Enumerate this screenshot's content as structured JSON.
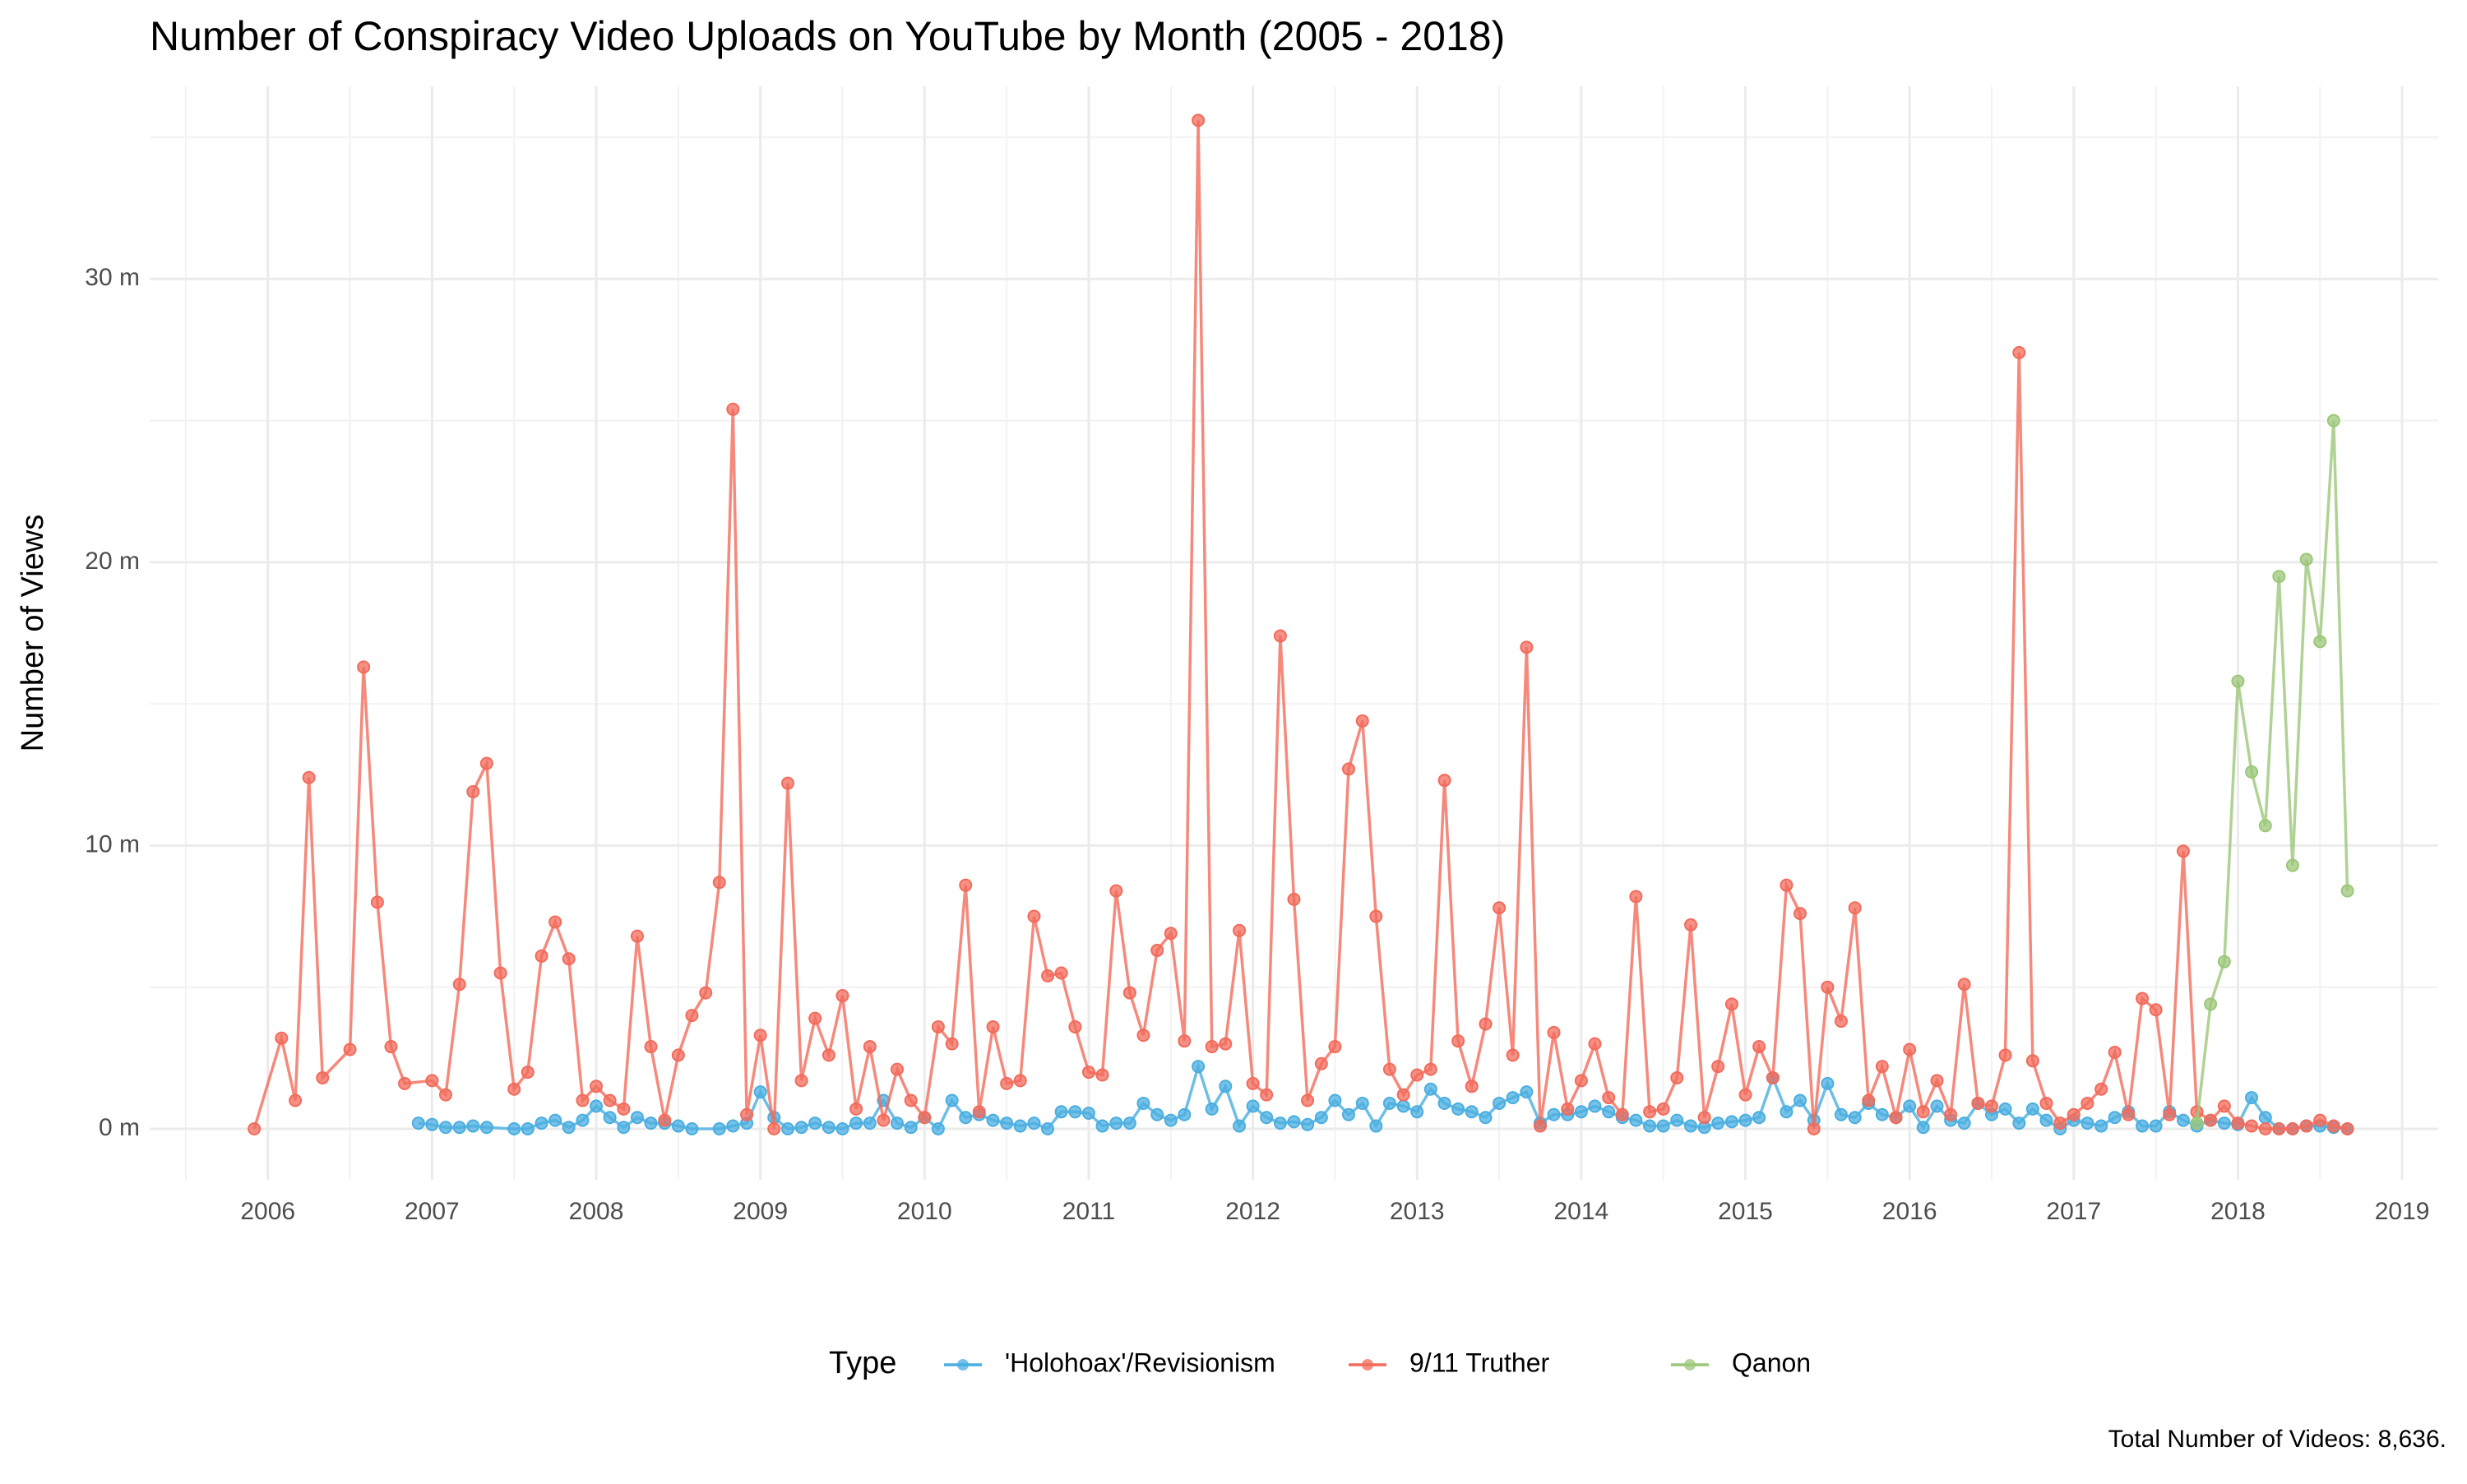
{
  "chart_data": {
    "type": "line",
    "title": "Number of Conspiracy Video Uploads on YouTube by Month (2005 - 2018)",
    "y_label": "Number of Views",
    "legend_title": "Type",
    "legend_position": "bottom",
    "caption": "Total Number of Videos: 8,636.",
    "grid": true,
    "xlim": [
      2005.28,
      2019.22
    ],
    "xticks": [
      2006,
      2007,
      2008,
      2009,
      2010,
      2011,
      2012,
      2013,
      2014,
      2015,
      2016,
      2017,
      2018,
      2019
    ],
    "ylim": [
      -1800000.0,
      36800000.0
    ],
    "yticks": [
      {
        "value": 0,
        "label": "0 m"
      },
      {
        "value": 10000000.0,
        "label": "10 m"
      },
      {
        "value": 20000000.0,
        "label": "20 m"
      },
      {
        "value": 30000000.0,
        "label": "30 m"
      }
    ],
    "series": [
      {
        "name": "'Holohoax'/Revisionism",
        "color": "#4aaee0",
        "x": [
          2006.917,
          2007.0,
          2007.083,
          2007.167,
          2007.25,
          2007.333,
          2007.5,
          2007.583,
          2007.667,
          2007.75,
          2007.833,
          2007.917,
          2008.0,
          2008.083,
          2008.167,
          2008.25,
          2008.333,
          2008.417,
          2008.5,
          2008.583,
          2008.75,
          2008.833,
          2008.917,
          2009.0,
          2009.083,
          2009.167,
          2009.25,
          2009.333,
          2009.417,
          2009.5,
          2009.583,
          2009.667,
          2009.75,
          2009.833,
          2009.917,
          2010.0,
          2010.083,
          2010.167,
          2010.25,
          2010.333,
          2010.417,
          2010.5,
          2010.583,
          2010.667,
          2010.75,
          2010.833,
          2010.917,
          2011.0,
          2011.083,
          2011.167,
          2011.25,
          2011.333,
          2011.417,
          2011.5,
          2011.583,
          2011.667,
          2011.75,
          2011.833,
          2011.917,
          2012.0,
          2012.083,
          2012.167,
          2012.25,
          2012.333,
          2012.417,
          2012.5,
          2012.583,
          2012.667,
          2012.75,
          2012.833,
          2012.917,
          2013.0,
          2013.083,
          2013.167,
          2013.25,
          2013.333,
          2013.417,
          2013.5,
          2013.583,
          2013.667,
          2013.75,
          2013.833,
          2013.917,
          2014.0,
          2014.083,
          2014.167,
          2014.25,
          2014.333,
          2014.417,
          2014.5,
          2014.583,
          2014.667,
          2014.75,
          2014.833,
          2014.917,
          2015.0,
          2015.083,
          2015.167,
          2015.25,
          2015.333,
          2015.417,
          2015.5,
          2015.583,
          2015.667,
          2015.75,
          2015.833,
          2015.917,
          2016.0,
          2016.083,
          2016.167,
          2016.25,
          2016.333,
          2016.417,
          2016.5,
          2016.583,
          2016.667,
          2016.75,
          2016.833,
          2016.917,
          2017.0,
          2017.083,
          2017.167,
          2017.25,
          2017.333,
          2017.417,
          2017.5,
          2017.583,
          2017.667,
          2017.75,
          2017.833,
          2017.917,
          2018.0,
          2018.083,
          2018.167,
          2018.25,
          2018.333,
          2018.417,
          2018.5,
          2018.583,
          2018.667
        ],
        "values": [
          200000.0,
          150000.0,
          50000.0,
          50000.0,
          100000.0,
          50000.0,
          0,
          0,
          200000.0,
          300000.0,
          50000.0,
          300000.0,
          800000.0,
          400000.0,
          50000.0,
          400000.0,
          200000.0,
          200000.0,
          100000.0,
          0,
          0,
          100000.0,
          200000.0,
          1300000.0,
          400000.0,
          0,
          50000.0,
          200000.0,
          50000.0,
          0,
          200000.0,
          200000.0,
          1000000.0,
          200000.0,
          50000.0,
          400000.0,
          0,
          1000000.0,
          400000.0,
          500000.0,
          300000.0,
          200000.0,
          100000.0,
          200000.0,
          0,
          600000.0,
          600000.0,
          550000.0,
          100000.0,
          200000.0,
          200000.0,
          900000.0,
          500000.0,
          300000.0,
          500000.0,
          2200000.0,
          700000.0,
          1500000.0,
          100000.0,
          800000.0,
          400000.0,
          200000.0,
          250000.0,
          150000.0,
          400000.0,
          1000000.0,
          500000.0,
          900000.0,
          100000.0,
          900000.0,
          800000.0,
          600000.0,
          1400000.0,
          900000.0,
          700000.0,
          600000.0,
          400000.0,
          900000.0,
          1100000.0,
          1300000.0,
          200000.0,
          500000.0,
          500000.0,
          600000.0,
          800000.0,
          600000.0,
          400000.0,
          300000.0,
          100000.0,
          100000.0,
          300000.0,
          100000.0,
          50000.0,
          200000.0,
          250000.0,
          300000.0,
          400000.0,
          1800000.0,
          600000.0,
          1000000.0,
          300000.0,
          1600000.0,
          500000.0,
          400000.0,
          900000.0,
          500000.0,
          400000.0,
          800000.0,
          50000.0,
          800000.0,
          300000.0,
          200000.0,
          900000.0,
          500000.0,
          700000.0,
          200000.0,
          700000.0,
          300000.0,
          0,
          300000.0,
          200000.0,
          100000.0,
          400000.0,
          600000.0,
          100000.0,
          100000.0,
          600000.0,
          300000.0,
          100000.0,
          300000.0,
          200000.0,
          150000.0,
          1100000.0,
          400000.0,
          0,
          0,
          100000.0,
          100000.0,
          50000.0,
          0
        ]
      },
      {
        "name": "9/11 Truther",
        "color": "#f26b5b",
        "x": [
          2005.917,
          2006.083,
          2006.167,
          2006.25,
          2006.333,
          2006.5,
          2006.583,
          2006.667,
          2006.75,
          2006.833,
          2007.0,
          2007.083,
          2007.167,
          2007.25,
          2007.333,
          2007.417,
          2007.5,
          2007.583,
          2007.667,
          2007.75,
          2007.833,
          2007.917,
          2008.0,
          2008.083,
          2008.167,
          2008.25,
          2008.333,
          2008.417,
          2008.5,
          2008.583,
          2008.667,
          2008.75,
          2008.833,
          2008.917,
          2009.0,
          2009.083,
          2009.167,
          2009.25,
          2009.333,
          2009.417,
          2009.5,
          2009.583,
          2009.667,
          2009.75,
          2009.833,
          2009.917,
          2010.0,
          2010.083,
          2010.167,
          2010.25,
          2010.333,
          2010.417,
          2010.5,
          2010.583,
          2010.667,
          2010.75,
          2010.833,
          2010.917,
          2011.0,
          2011.083,
          2011.167,
          2011.25,
          2011.333,
          2011.417,
          2011.5,
          2011.583,
          2011.667,
          2011.75,
          2011.833,
          2011.917,
          2012.0,
          2012.083,
          2012.167,
          2012.25,
          2012.333,
          2012.417,
          2012.5,
          2012.583,
          2012.667,
          2012.75,
          2012.833,
          2012.917,
          2013.0,
          2013.083,
          2013.167,
          2013.25,
          2013.333,
          2013.417,
          2013.5,
          2013.583,
          2013.667,
          2013.75,
          2013.833,
          2013.917,
          2014.0,
          2014.083,
          2014.167,
          2014.25,
          2014.333,
          2014.417,
          2014.5,
          2014.583,
          2014.667,
          2014.75,
          2014.833,
          2014.917,
          2015.0,
          2015.083,
          2015.167,
          2015.25,
          2015.333,
          2015.417,
          2015.5,
          2015.583,
          2015.667,
          2015.75,
          2015.833,
          2015.917,
          2016.0,
          2016.083,
          2016.167,
          2016.25,
          2016.333,
          2016.417,
          2016.5,
          2016.583,
          2016.667,
          2016.75,
          2016.833,
          2016.917,
          2017.0,
          2017.083,
          2017.167,
          2017.25,
          2017.333,
          2017.417,
          2017.5,
          2017.583,
          2017.667,
          2017.75,
          2017.833,
          2017.917,
          2018.0,
          2018.083,
          2018.167,
          2018.25,
          2018.333,
          2018.417,
          2018.5,
          2018.583,
          2018.667
        ],
        "values": [
          0,
          3200000.0,
          1000000.0,
          12400000.0,
          1800000.0,
          2800000.0,
          16300000.0,
          8000000.0,
          2900000.0,
          1600000.0,
          1700000.0,
          1200000.0,
          5100000.0,
          11900000.0,
          12900000.0,
          5500000.0,
          1400000.0,
          2000000.0,
          6100000.0,
          7300000.0,
          6000000.0,
          1000000.0,
          1500000.0,
          1000000.0,
          700000.0,
          6800000.0,
          2900000.0,
          300000.0,
          2600000.0,
          4000000.0,
          4800000.0,
          8700000.0,
          25400000.0,
          500000.0,
          3300000.0,
          0,
          12200000.0,
          1700000.0,
          3900000.0,
          2600000.0,
          4700000.0,
          700000.0,
          2900000.0,
          300000.0,
          2100000.0,
          1000000.0,
          400000.0,
          3600000.0,
          3000000.0,
          8600000.0,
          600000.0,
          3600000.0,
          1600000.0,
          1700000.0,
          7500000.0,
          5400000.0,
          5500000.0,
          3600000.0,
          2000000.0,
          1900000.0,
          8400000.0,
          4800000.0,
          3300000.0,
          6300000.0,
          6900000.0,
          3100000.0,
          35600000.0,
          2900000.0,
          3000000.0,
          7000000.0,
          1600000.0,
          1200000.0,
          17400000.0,
          8100000.0,
          1000000.0,
          2300000.0,
          2900000.0,
          12700000.0,
          14400000.0,
          7500000.0,
          2100000.0,
          1200000.0,
          1900000.0,
          2100000.0,
          12300000.0,
          3100000.0,
          1500000.0,
          3700000.0,
          7800000.0,
          2600000.0,
          17000000.0,
          100000.0,
          3400000.0,
          700000.0,
          1700000.0,
          3000000.0,
          1100000.0,
          500000.0,
          8200000.0,
          600000.0,
          700000.0,
          1800000.0,
          7200000.0,
          400000.0,
          2200000.0,
          4400000.0,
          1200000.0,
          2900000.0,
          1800000.0,
          8600000.0,
          7600000.0,
          0,
          5000000.0,
          3800000.0,
          7800000.0,
          1000000.0,
          2200000.0,
          400000.0,
          2800000.0,
          600000.0,
          1700000.0,
          500000.0,
          5100000.0,
          900000.0,
          800000.0,
          2600000.0,
          27400000.0,
          2400000.0,
          900000.0,
          200000.0,
          500000.0,
          900000.0,
          1400000.0,
          2700000.0,
          500000.0,
          4600000.0,
          4200000.0,
          500000.0,
          9800000.0,
          600000.0,
          300000.0,
          800000.0,
          200000.0,
          100000.0,
          0,
          0,
          0,
          100000.0,
          300000.0,
          100000.0,
          0
        ]
      },
      {
        "name": "Qanon",
        "color": "#9cc779",
        "x": [
          2017.75,
          2017.833,
          2017.917,
          2018.0,
          2018.083,
          2018.167,
          2018.25,
          2018.333,
          2018.417,
          2018.5,
          2018.583,
          2018.667
        ],
        "values": [
          200000.0,
          4400000.0,
          5900000.0,
          15800000.0,
          12600000.0,
          10700000.0,
          19500000.0,
          9300000.0,
          20100000.0,
          17200000.0,
          25000000.0,
          8400000.0
        ]
      }
    ]
  }
}
